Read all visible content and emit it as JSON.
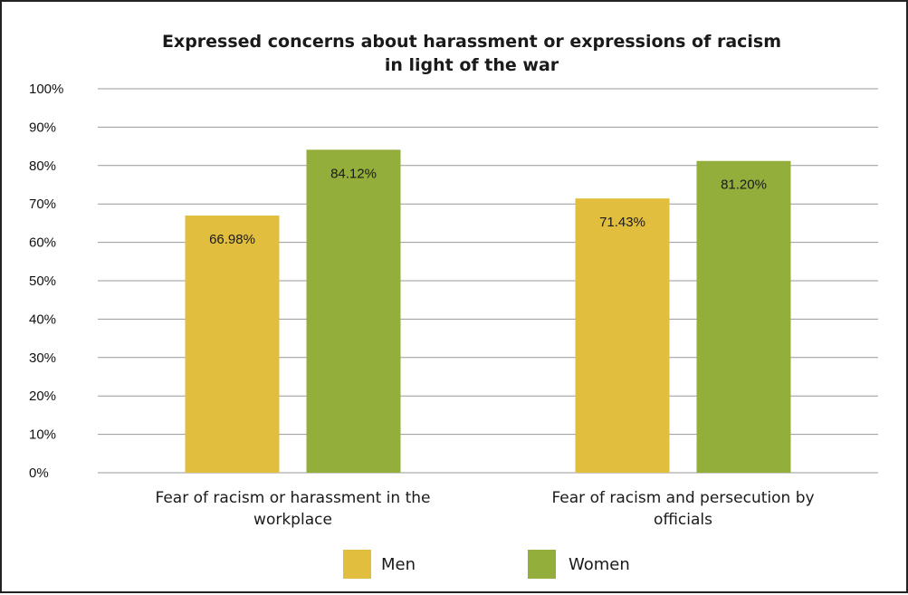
{
  "chart_data": {
    "type": "bar",
    "title": "Expressed concerns about harassment or expressions of racism in light of the war",
    "title_lines": [
      "Expressed concerns about harassment or expressions of racism",
      "in light of the war"
    ],
    "categories": [
      "Fear of racism or harassment in the workplace",
      "Fear of racism and persecution by officials"
    ],
    "category_lines": [
      [
        "Fear of racism or harassment in the",
        "workplace"
      ],
      [
        "Fear of racism and persecution by",
        "officials"
      ]
    ],
    "series": [
      {
        "name": "Men",
        "color": "#E2BE3E",
        "values": [
          66.98,
          71.43
        ],
        "labels": [
          "66.98%",
          "71.43%"
        ]
      },
      {
        "name": "Women",
        "color": "#93AE3B",
        "values": [
          84.12,
          81.2
        ],
        "labels": [
          "84.12%",
          "81.20%"
        ]
      }
    ],
    "ylim": [
      0,
      100
    ],
    "yticks": [
      "0%",
      "10%",
      "20%",
      "30%",
      "40%",
      "50%",
      "60%",
      "70%",
      "80%",
      "90%",
      "100%"
    ],
    "xlabel": "",
    "ylabel": "",
    "grid": true,
    "legend_position": "bottom"
  }
}
